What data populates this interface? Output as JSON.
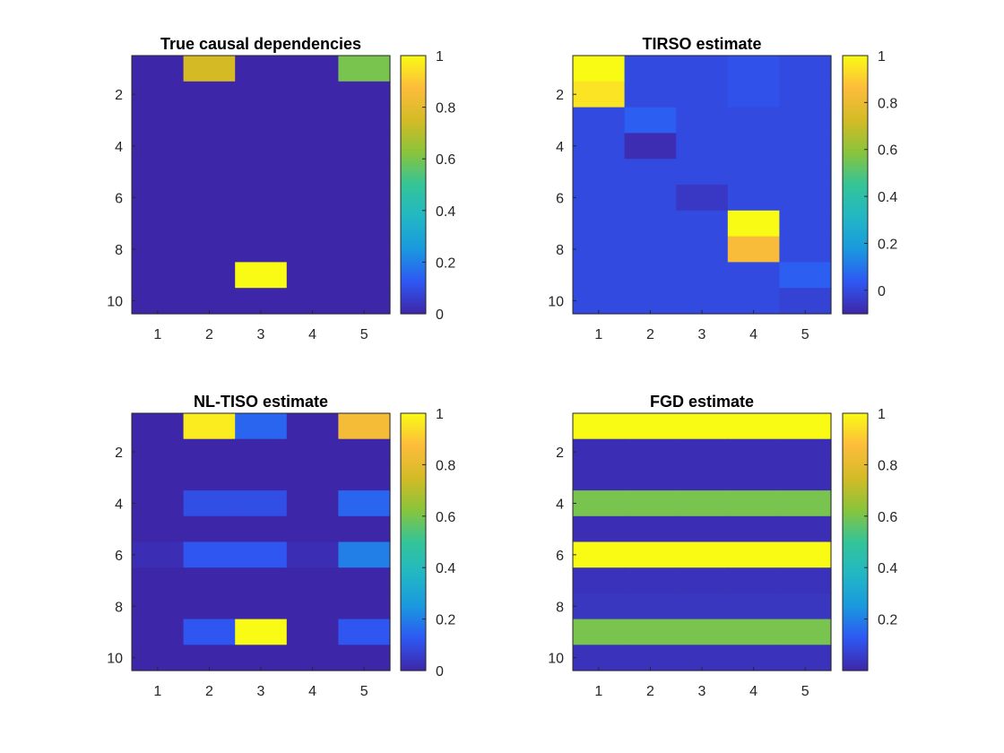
{
  "chart_data": [
    {
      "type": "heatmap",
      "title": "True causal dependencies",
      "rows": 10,
      "cols": 5,
      "xticks": [
        "1",
        "2",
        "3",
        "4",
        "5"
      ],
      "yticks": [
        "2",
        "4",
        "6",
        "8",
        "10"
      ],
      "clim": [
        0,
        1
      ],
      "colorbar_ticks": [
        "0",
        "0.2",
        "0.4",
        "0.6",
        "0.8",
        "1"
      ],
      "matrix": [
        [
          0,
          0.75,
          0,
          0,
          0.6
        ],
        [
          0,
          0,
          0,
          0,
          0
        ],
        [
          0,
          0,
          0,
          0,
          0
        ],
        [
          0,
          0,
          0,
          0,
          0
        ],
        [
          0,
          0,
          0,
          0,
          0
        ],
        [
          0,
          0,
          0,
          0,
          0
        ],
        [
          0,
          0,
          0,
          0,
          0
        ],
        [
          0,
          0,
          0,
          0,
          0
        ],
        [
          0,
          0,
          1,
          0,
          0
        ],
        [
          0,
          0,
          0,
          0,
          0
        ]
      ]
    },
    {
      "type": "heatmap",
      "title": "TIRSO estimate",
      "rows": 10,
      "cols": 5,
      "xticks": [
        "1",
        "2",
        "3",
        "4",
        "5"
      ],
      "yticks": [
        "2",
        "4",
        "6",
        "8",
        "10"
      ],
      "clim": [
        -0.1,
        1
      ],
      "colorbar_ticks": [
        "0",
        "0.2",
        "0.4",
        "0.6",
        "0.8",
        "1"
      ],
      "matrix": [
        [
          1.0,
          0.0,
          0.0,
          0.02,
          0.0
        ],
        [
          0.95,
          0.0,
          0.0,
          0.02,
          0.0
        ],
        [
          0.0,
          0.05,
          0.0,
          0.0,
          0.0
        ],
        [
          0.0,
          -0.08,
          0.0,
          0.0,
          0.0
        ],
        [
          0.0,
          0.0,
          0.0,
          0.0,
          0.0
        ],
        [
          0.0,
          0.0,
          -0.05,
          0.0,
          0.0
        ],
        [
          0.0,
          0.0,
          0.0,
          1.0,
          0.0
        ],
        [
          0.0,
          0.0,
          0.0,
          0.85,
          0.0
        ],
        [
          0.0,
          0.0,
          0.0,
          0.0,
          0.05
        ],
        [
          0.0,
          0.0,
          0.0,
          0.0,
          -0.02
        ]
      ]
    },
    {
      "type": "heatmap",
      "title": "NL-TISO estimate",
      "rows": 10,
      "cols": 5,
      "xticks": [
        "1",
        "2",
        "3",
        "4",
        "5"
      ],
      "yticks": [
        "2",
        "4",
        "6",
        "8",
        "10"
      ],
      "clim": [
        0,
        1
      ],
      "colorbar_ticks": [
        "0",
        "0.2",
        "0.4",
        "0.6",
        "0.8",
        "1"
      ],
      "matrix": [
        [
          0,
          0.97,
          0.15,
          0,
          0.85
        ],
        [
          0,
          0,
          0,
          0,
          0
        ],
        [
          0,
          0,
          0,
          0,
          0
        ],
        [
          0,
          0.1,
          0.1,
          0,
          0.15
        ],
        [
          0,
          0,
          0,
          0,
          0
        ],
        [
          0.02,
          0.12,
          0.12,
          0.02,
          0.2
        ],
        [
          0,
          0,
          0,
          0,
          0
        ],
        [
          0,
          0,
          0,
          0,
          0
        ],
        [
          0,
          0.12,
          1,
          0,
          0.12
        ],
        [
          0,
          0,
          0,
          0,
          0
        ]
      ]
    },
    {
      "type": "heatmap",
      "title": "FGD estimate",
      "rows": 10,
      "cols": 5,
      "xticks": [
        "1",
        "2",
        "3",
        "4",
        "5"
      ],
      "yticks": [
        "2",
        "4",
        "6",
        "8",
        "10"
      ],
      "clim": [
        0,
        1
      ],
      "colorbar_ticks": [
        "0.2",
        "0.4",
        "0.6",
        "0.8",
        "1"
      ],
      "matrix": [
        [
          1,
          1,
          1,
          1,
          1
        ],
        [
          0.02,
          0.02,
          0.02,
          0.02,
          0.02
        ],
        [
          0.02,
          0.02,
          0.02,
          0.02,
          0.02
        ],
        [
          0.6,
          0.6,
          0.6,
          0.6,
          0.6
        ],
        [
          0.02,
          0.02,
          0.02,
          0.02,
          0.02
        ],
        [
          1,
          1,
          1,
          1,
          1
        ],
        [
          0.03,
          0.03,
          0.03,
          0.03,
          0.03
        ],
        [
          0.04,
          0.04,
          0.04,
          0.04,
          0.04
        ],
        [
          0.6,
          0.6,
          0.6,
          0.6,
          0.6
        ],
        [
          0.03,
          0.03,
          0.03,
          0.03,
          0.03
        ]
      ]
    }
  ],
  "colors": {
    "parula": [
      "#3e26a8",
      "#2e58f4",
      "#1a99de",
      "#22b7c4",
      "#34c498",
      "#8ac43b",
      "#d4bb26",
      "#fdbc3c",
      "#f9fb14"
    ],
    "frame": "#262626"
  }
}
